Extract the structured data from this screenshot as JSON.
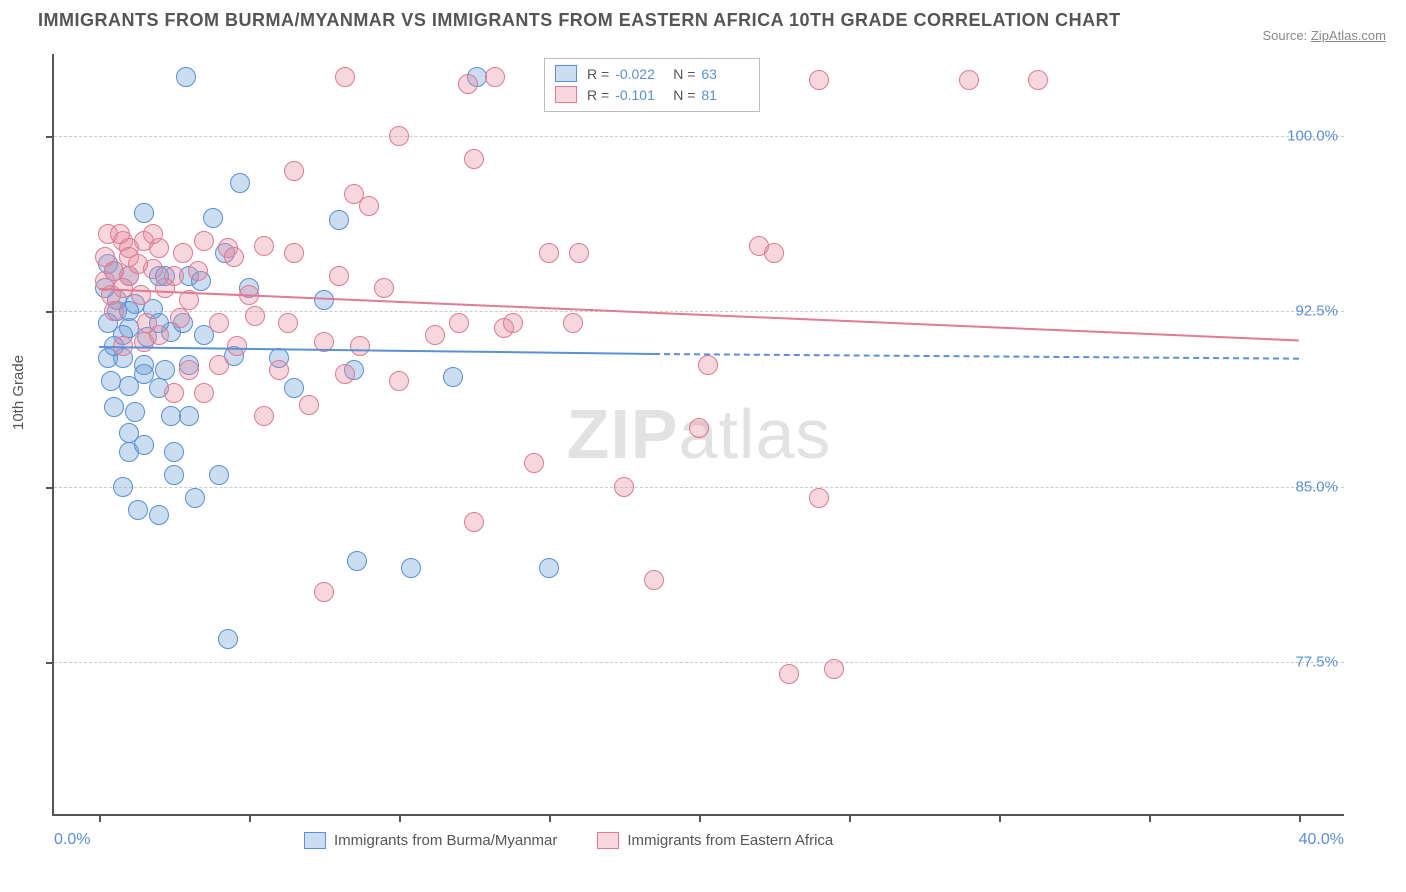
{
  "header": {
    "title": "IMMIGRANTS FROM BURMA/MYANMAR VS IMMIGRANTS FROM EASTERN AFRICA 10TH GRADE CORRELATION CHART",
    "source_prefix": "Source: ",
    "source_name": "ZipAtlas.com"
  },
  "chart": {
    "type": "scatter",
    "ylabel": "10th Grade",
    "x_domain": [
      -1.5,
      41.5
    ],
    "y_domain": [
      71.0,
      103.5
    ],
    "x_ticks": [
      0,
      5,
      10,
      15,
      20,
      25,
      30,
      35,
      40
    ],
    "y_ticks": [
      77.5,
      85.0,
      92.5,
      100.0
    ],
    "y_tick_labels": [
      "77.5%",
      "85.0%",
      "92.5%",
      "100.0%"
    ],
    "x_axis_left_label": "0.0%",
    "x_axis_right_label": "40.0%",
    "background_color": "#ffffff",
    "grid_color": "#cccccc",
    "marker_radius": 9,
    "marker_stroke_width": 1.3,
    "trend_width": 2.5,
    "watermark_text_a": "ZIP",
    "watermark_text_b": "atlas",
    "series": [
      {
        "id": "burma",
        "name": "Immigrants from Burma/Myanmar",
        "fill": "rgba(107,157,214,0.35)",
        "stroke": "#5b8fd6",
        "R": "-0.022",
        "N": "63",
        "trend": {
          "x1": 0,
          "y1": 91.0,
          "x2": 18.5,
          "y2": 90.7,
          "dash_to_x": 40,
          "dash_y": 90.5
        },
        "points": [
          [
            2.9,
            102.5
          ],
          [
            12.6,
            102.5
          ],
          [
            4.7,
            98.0
          ],
          [
            1.5,
            96.7
          ],
          [
            3.8,
            96.5
          ],
          [
            8.0,
            96.4
          ],
          [
            0.3,
            94.5
          ],
          [
            0.5,
            94.2
          ],
          [
            1.0,
            94.0
          ],
          [
            2.0,
            94.0
          ],
          [
            3.0,
            94.0
          ],
          [
            4.2,
            95.0
          ],
          [
            0.6,
            93.0
          ],
          [
            1.2,
            92.8
          ],
          [
            1.8,
            92.6
          ],
          [
            1.0,
            91.8
          ],
          [
            1.6,
            91.4
          ],
          [
            2.4,
            91.6
          ],
          [
            0.8,
            90.5
          ],
          [
            1.5,
            90.2
          ],
          [
            2.2,
            90.0
          ],
          [
            3.0,
            90.2
          ],
          [
            4.5,
            90.6
          ],
          [
            6.0,
            90.5
          ],
          [
            1.0,
            89.3
          ],
          [
            2.0,
            89.2
          ],
          [
            0.5,
            88.4
          ],
          [
            1.2,
            88.2
          ],
          [
            2.4,
            88.0
          ],
          [
            1.0,
            87.3
          ],
          [
            2.5,
            85.5
          ],
          [
            4.0,
            85.5
          ],
          [
            1.0,
            86.5
          ],
          [
            1.5,
            86.8
          ],
          [
            7.5,
            93.0
          ],
          [
            8.5,
            90.0
          ],
          [
            11.8,
            89.7
          ],
          [
            3.2,
            84.5
          ],
          [
            4.3,
            78.5
          ],
          [
            1.3,
            84.0
          ],
          [
            2.0,
            83.8
          ],
          [
            0.8,
            85.0
          ],
          [
            8.6,
            81.8
          ],
          [
            10.4,
            81.5
          ],
          [
            15.0,
            81.5
          ],
          [
            0.8,
            91.5
          ],
          [
            0.3,
            92.0
          ],
          [
            0.2,
            93.5
          ],
          [
            0.6,
            92.5
          ],
          [
            1.0,
            92.5
          ],
          [
            0.3,
            90.5
          ],
          [
            2.0,
            92.0
          ],
          [
            2.8,
            92.0
          ],
          [
            0.4,
            89.5
          ],
          [
            2.2,
            94.0
          ],
          [
            3.4,
            93.8
          ],
          [
            6.5,
            89.2
          ],
          [
            5.0,
            93.5
          ],
          [
            3.0,
            88.0
          ],
          [
            0.5,
            91.0
          ],
          [
            1.5,
            89.8
          ],
          [
            3.5,
            91.5
          ],
          [
            2.5,
            86.5
          ]
        ]
      },
      {
        "id": "eastafrica",
        "name": "Immigrants from Eastern Africa",
        "fill": "rgba(230,140,160,0.35)",
        "stroke": "#de7b95",
        "R": "-0.101",
        "N": "81",
        "trend": {
          "x1": 0,
          "y1": 93.5,
          "x2": 40,
          "y2": 91.3
        },
        "points": [
          [
            8.2,
            102.5
          ],
          [
            12.3,
            102.2
          ],
          [
            13.2,
            102.5
          ],
          [
            24.0,
            102.4
          ],
          [
            29.0,
            102.4
          ],
          [
            31.3,
            102.4
          ],
          [
            10.0,
            100.0
          ],
          [
            12.5,
            99.0
          ],
          [
            6.5,
            98.5
          ],
          [
            8.5,
            97.5
          ],
          [
            0.3,
            95.8
          ],
          [
            0.8,
            95.5
          ],
          [
            1.0,
            95.2
          ],
          [
            1.5,
            95.5
          ],
          [
            2.0,
            95.2
          ],
          [
            2.8,
            95.0
          ],
          [
            3.5,
            95.5
          ],
          [
            4.3,
            95.2
          ],
          [
            5.5,
            95.3
          ],
          [
            1.0,
            94.0
          ],
          [
            1.8,
            94.3
          ],
          [
            2.5,
            94.0
          ],
          [
            3.3,
            94.2
          ],
          [
            0.2,
            93.8
          ],
          [
            0.8,
            93.5
          ],
          [
            1.4,
            93.2
          ],
          [
            2.2,
            93.5
          ],
          [
            3.0,
            93.0
          ],
          [
            5.0,
            93.2
          ],
          [
            0.5,
            92.5
          ],
          [
            1.6,
            92.0
          ],
          [
            2.7,
            92.2
          ],
          [
            4.0,
            92.0
          ],
          [
            5.2,
            92.3
          ],
          [
            6.3,
            92.0
          ],
          [
            0.8,
            91.0
          ],
          [
            1.5,
            91.2
          ],
          [
            4.6,
            91.0
          ],
          [
            7.5,
            91.2
          ],
          [
            6.0,
            90.0
          ],
          [
            8.2,
            89.8
          ],
          [
            10.0,
            89.5
          ],
          [
            11.2,
            91.5
          ],
          [
            3.0,
            90.0
          ],
          [
            4.0,
            90.2
          ],
          [
            2.5,
            89.0
          ],
          [
            5.5,
            88.0
          ],
          [
            7.0,
            88.5
          ],
          [
            12.0,
            92.0
          ],
          [
            13.5,
            91.8
          ],
          [
            13.8,
            92.0
          ],
          [
            16.0,
            95.0
          ],
          [
            22.0,
            95.3
          ],
          [
            15.8,
            92.0
          ],
          [
            20.3,
            90.2
          ],
          [
            22.5,
            95.0
          ],
          [
            0.2,
            94.8
          ],
          [
            0.5,
            94.2
          ],
          [
            1.0,
            94.8
          ],
          [
            14.5,
            86.0
          ],
          [
            17.5,
            85.0
          ],
          [
            24.0,
            84.5
          ],
          [
            12.5,
            83.5
          ],
          [
            20.0,
            87.5
          ],
          [
            23.0,
            77.0
          ],
          [
            24.5,
            77.2
          ],
          [
            18.5,
            81.0
          ],
          [
            7.5,
            80.5
          ],
          [
            0.7,
            95.8
          ],
          [
            1.3,
            94.5
          ],
          [
            4.5,
            94.8
          ],
          [
            2.0,
            91.5
          ],
          [
            8.0,
            94.0
          ],
          [
            9.5,
            93.5
          ],
          [
            15.0,
            95.0
          ],
          [
            3.5,
            89.0
          ],
          [
            9.0,
            97.0
          ],
          [
            6.5,
            95.0
          ],
          [
            8.7,
            91.0
          ],
          [
            0.4,
            93.2
          ],
          [
            1.8,
            95.8
          ]
        ]
      }
    ],
    "stat_legend": {
      "r_label": "R =",
      "n_label": "N ="
    }
  }
}
